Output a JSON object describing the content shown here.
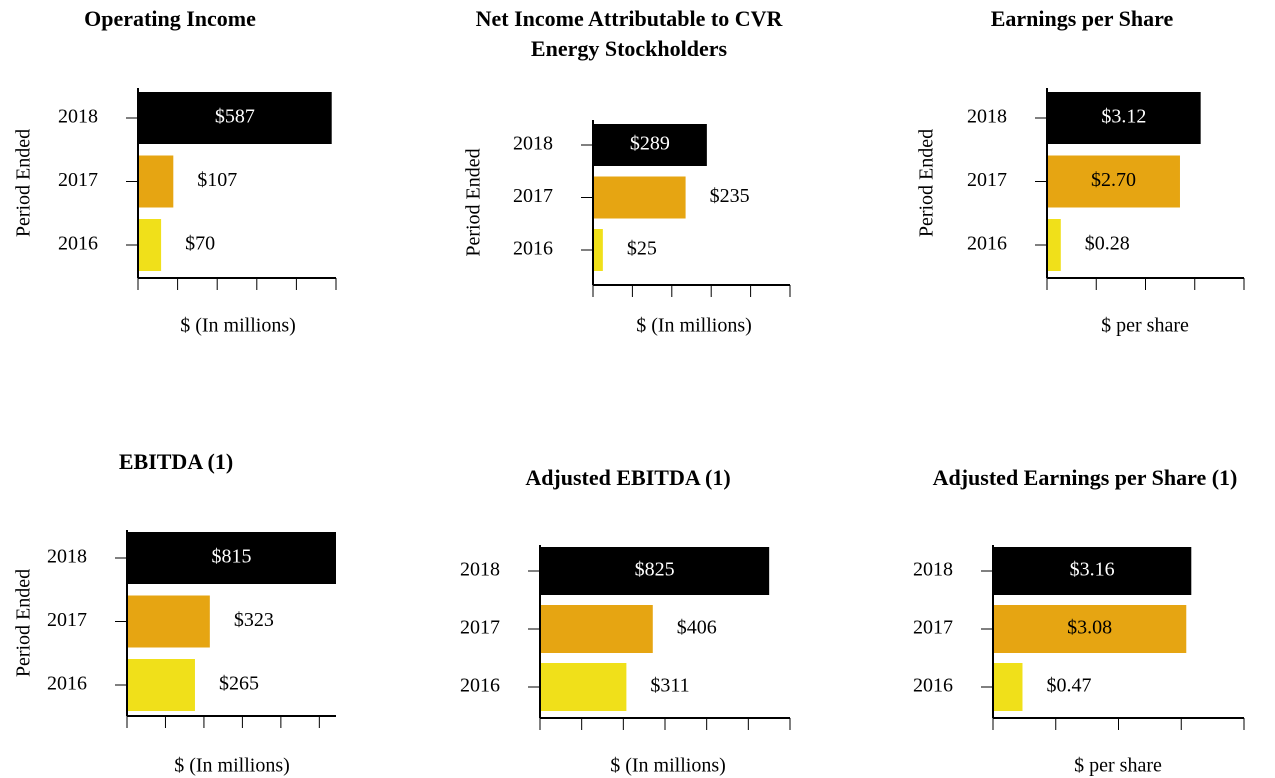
{
  "chart_data": [
    {
      "type": "bar",
      "title": "Operating Income",
      "ylabel": "Period Ended",
      "xlabel": "$ (In millions)",
      "categories": [
        "2018",
        "2017",
        "2016"
      ],
      "values": [
        587,
        107,
        70
      ],
      "value_labels": [
        "$587",
        "$107",
        "$70"
      ],
      "colors": [
        "#000000",
        "#e6a512",
        "#f0e01a"
      ],
      "xlim": [
        0,
        600
      ],
      "xticks": [
        0,
        120,
        240,
        360,
        480,
        600
      ]
    },
    {
      "type": "bar",
      "title": "Net Income Attributable to CVR Energy Stockholders",
      "ylabel": "Period Ended",
      "xlabel": "$ (In millions)",
      "categories": [
        "2018",
        "2017",
        "2016"
      ],
      "values": [
        289,
        235,
        25
      ],
      "value_labels": [
        "$289",
        "$235",
        "$25"
      ],
      "colors": [
        "#000000",
        "#e6a512",
        "#f0e01a"
      ],
      "xlim": [
        0,
        500
      ],
      "xticks": [
        0,
        100,
        200,
        300,
        400,
        500
      ]
    },
    {
      "type": "bar",
      "title": "Earnings per Share",
      "ylabel": "Period Ended",
      "xlabel": "$ per share",
      "categories": [
        "2018",
        "2017",
        "2016"
      ],
      "values": [
        3.12,
        2.7,
        0.28
      ],
      "value_labels": [
        "$3.12",
        "$2.70",
        "$0.28"
      ],
      "colors": [
        "#000000",
        "#e6a512",
        "#f0e01a"
      ],
      "xlim": [
        0,
        4
      ],
      "xticks": [
        0,
        1,
        2,
        3,
        4
      ]
    },
    {
      "type": "bar",
      "title": "EBITDA (1)",
      "ylabel": "Period Ended",
      "xlabel": "$ (In millions)",
      "categories": [
        "2018",
        "2017",
        "2016"
      ],
      "values": [
        815,
        323,
        265
      ],
      "value_labels": [
        "$815",
        "$323",
        "$265"
      ],
      "colors": [
        "#000000",
        "#e6a512",
        "#f0e01a"
      ],
      "xlim": [
        0,
        815
      ],
      "xticks": [
        0,
        150,
        300,
        450,
        600,
        750
      ]
    },
    {
      "type": "bar",
      "title": "Adjusted EBITDA (1)",
      "xlabel": "$ (In millions)",
      "categories": [
        "2018",
        "2017",
        "2016"
      ],
      "values": [
        825,
        406,
        311
      ],
      "value_labels": [
        "$825",
        "$406",
        "$311"
      ],
      "colors": [
        "#000000",
        "#e6a512",
        "#f0e01a"
      ],
      "xlim": [
        0,
        900
      ],
      "xticks": [
        0,
        150,
        300,
        450,
        600,
        750,
        900
      ]
    },
    {
      "type": "bar",
      "title": "Adjusted Earnings per Share (1)",
      "xlabel": "$ per share",
      "categories": [
        "2018",
        "2017",
        "2016"
      ],
      "values": [
        3.16,
        3.08,
        0.47
      ],
      "value_labels": [
        "$3.16",
        "$3.08",
        "$0.47"
      ],
      "colors": [
        "#000000",
        "#e6a512",
        "#f0e01a"
      ],
      "xlim": [
        0,
        4
      ],
      "xticks": [
        0,
        1,
        2,
        3,
        4
      ]
    }
  ]
}
